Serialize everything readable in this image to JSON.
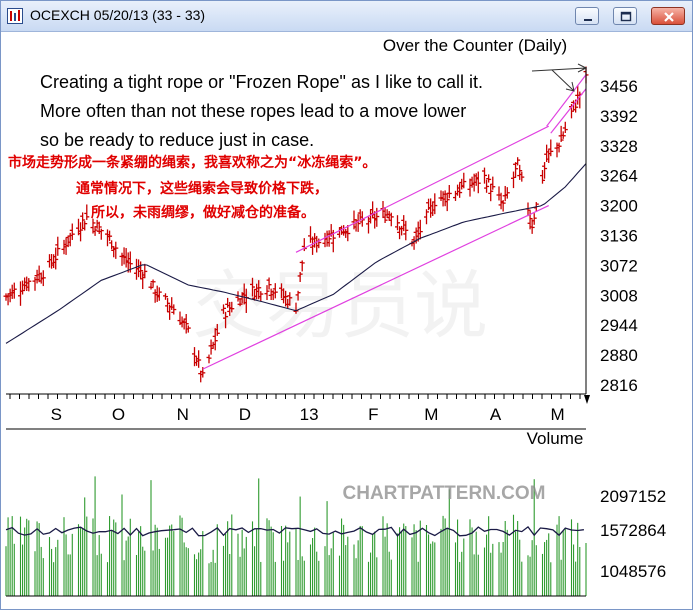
{
  "window": {
    "title": "OCEXCH 05/20/13 (33 - 33)",
    "controls": [
      "minimize",
      "restore",
      "close"
    ],
    "icons": [
      "chart-app-icon",
      "minimize-icon",
      "restore-icon",
      "close-icon"
    ]
  },
  "annotation": {
    "english_lines": [
      "Creating a tight rope or \"Frozen Rope\" as I like to call it.",
      "More often than not these ropes lead to a move lower",
      "so be ready to reduce just in case."
    ],
    "chinese_lines": [
      "市场走势形成一条紧绷的绳索，我喜欢称之为“冰冻绳索”。",
      "通常情况下，这些绳索会导致价格下跌，",
      "所以，未雨绸缪，做好减仓的准备。"
    ],
    "chinese_color": "#e00000"
  },
  "watermarks": {
    "site": "CHARTPATTERN.COM",
    "faint_background": "交易员说"
  },
  "chart_data": {
    "type": "ohlc",
    "title": "Over the Counter (Daily)",
    "x_tick_labels": [
      "S",
      "O",
      "N",
      "D",
      "13",
      "F",
      "M",
      "A",
      "M"
    ],
    "y_tick_labels": [
      "3456",
      "3392",
      "3328",
      "3264",
      "3200",
      "3136",
      "3072",
      "3008",
      "2944",
      "2880",
      "2816"
    ],
    "ylim": [
      2800,
      3490
    ],
    "price_close_approx": [
      {
        "x": "Aug 13",
        "y": 3005
      },
      {
        "x": "Sep 1",
        "y": 3060
      },
      {
        "x": "Sep 14",
        "y": 3140
      },
      {
        "x": "Sep 21",
        "y": 3175
      },
      {
        "x": "Oct 1",
        "y": 3135
      },
      {
        "x": "Oct 10",
        "y": 3080
      },
      {
        "x": "Oct 19",
        "y": 3055
      },
      {
        "x": "Oct 25",
        "y": 3010
      },
      {
        "x": "Nov 2",
        "y": 2980
      },
      {
        "x": "Nov 9",
        "y": 2930
      },
      {
        "x": "Nov 16",
        "y": 2830
      },
      {
        "x": "Nov 26",
        "y": 2970
      },
      {
        "x": "Dec 6",
        "y": 3010
      },
      {
        "x": "Dec 18",
        "y": 3030
      },
      {
        "x": "Dec 31",
        "y": 2985
      },
      {
        "x": "Jan 4",
        "y": 3110
      },
      {
        "x": "Jan 18",
        "y": 3140
      },
      {
        "x": "Feb 1",
        "y": 3165
      },
      {
        "x": "Feb 15",
        "y": 3185
      },
      {
        "x": "Feb 26",
        "y": 3120
      },
      {
        "x": "Mar 8",
        "y": 3210
      },
      {
        "x": "Mar 20",
        "y": 3235
      },
      {
        "x": "Apr 1",
        "y": 3260
      },
      {
        "x": "Apr 10",
        "y": 3200
      },
      {
        "x": "Apr 17",
        "y": 3285
      },
      {
        "x": "Apr 24",
        "y": 3160
      },
      {
        "x": "May 1",
        "y": 3300
      },
      {
        "x": "May 8",
        "y": 3340
      },
      {
        "x": "May 14",
        "y": 3410
      },
      {
        "x": "May 20",
        "y": 3470
      }
    ],
    "moving_average_approx": [
      {
        "x": "Aug 13",
        "y": 2905
      },
      {
        "x": "Sep 7",
        "y": 2975
      },
      {
        "x": "Sep 28",
        "y": 3040
      },
      {
        "x": "Oct 19",
        "y": 3075
      },
      {
        "x": "Nov 9",
        "y": 3030
      },
      {
        "x": "Nov 26",
        "y": 3015
      },
      {
        "x": "Dec 14",
        "y": 2995
      },
      {
        "x": "Dec 31",
        "y": 2975
      },
      {
        "x": "Jan 18",
        "y": 3010
      },
      {
        "x": "Feb 8",
        "y": 3080
      },
      {
        "x": "Mar 1",
        "y": 3130
      },
      {
        "x": "Mar 22",
        "y": 3165
      },
      {
        "x": "Apr 12",
        "y": 3185
      },
      {
        "x": "Apr 29",
        "y": 3200
      },
      {
        "x": "May 10",
        "y": 3240
      },
      {
        "x": "May 20",
        "y": 3290
      }
    ],
    "trendlines": [
      {
        "role": "upper-channel",
        "from": {
          "x": "Dec 31",
          "y": 3100
        },
        "to": {
          "x": "May 2",
          "y": 3370
        }
      },
      {
        "role": "lower-channel",
        "from": {
          "x": "Nov 16",
          "y": 2850
        },
        "to": {
          "x": "May 2",
          "y": 3200
        }
      },
      {
        "role": "rope-upper",
        "from": {
          "x": "May 1",
          "y": 3370
        },
        "to": {
          "x": "May 20",
          "y": 3480
        }
      },
      {
        "role": "rope-lower",
        "from": {
          "x": "May 3",
          "y": 3355
        },
        "to": {
          "x": "May 20",
          "y": 3450
        }
      }
    ],
    "volume": {
      "label": "Volume",
      "y_tick_labels": [
        "2097152",
        "1572864",
        "1048576"
      ],
      "average_approx": 1590000
    },
    "colors": {
      "up_bar": "#c80000",
      "ma_line": "#1a1a46",
      "trendline": "#e040e0",
      "volume_bar": "#2e9a2e"
    },
    "grid": false
  }
}
